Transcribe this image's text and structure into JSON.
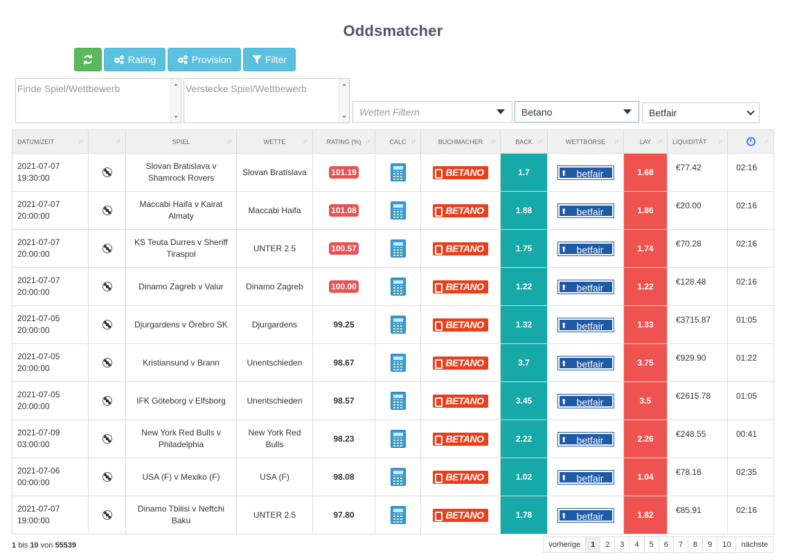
{
  "page": {
    "title": "Oddsmatcher"
  },
  "toolbar": {
    "rating_label": "Rating",
    "provision_label": "Provision",
    "filter_label": "Filter"
  },
  "filters": {
    "find_placeholder": "Finde Spiel/Wettbewerb",
    "hide_placeholder": "Verstecke Spiel/Wettbewerb",
    "bets_placeholder": "Wetten Filtern",
    "bookmaker_value": "Betano",
    "exchange_value": "Betfair"
  },
  "table": {
    "headers": [
      "DATUM/ZEIT",
      "",
      "SPIEL",
      "WETTE",
      "RATING (%)",
      "CALC",
      "BUCHMACHER",
      "BACK",
      "WETTBÖRSE",
      "LAY",
      "LIQUIDITÄT",
      ""
    ],
    "bookmaker_logo": "BETANO",
    "exchange_logo": "betfair",
    "rows": [
      {
        "date": "2021-07-07",
        "time": "19:30:00",
        "game": "Slovan Bratislava v Shamrock Rovers",
        "bet": "Slovan Bratislava",
        "rating": "101.19",
        "highlight": true,
        "back": "1.7",
        "lay": "1.68",
        "liquidity": "€77.42",
        "remaining": "02:16"
      },
      {
        "date": "2021-07-07",
        "time": "20:00:00",
        "game": "Maccabi Haifa v Kairat Almaty",
        "bet": "Maccabi Haifa",
        "rating": "101.08",
        "highlight": true,
        "back": "1.88",
        "lay": "1.86",
        "liquidity": "€20.00",
        "remaining": "02:16"
      },
      {
        "date": "2021-07-07",
        "time": "20:00:00",
        "game": "KS Teuta Durres v Sheriff Tiraspol",
        "bet": "UNTER 2.5",
        "rating": "100.57",
        "highlight": true,
        "back": "1.75",
        "lay": "1.74",
        "liquidity": "€70.28",
        "remaining": "02:16"
      },
      {
        "date": "2021-07-07",
        "time": "20:00:00",
        "game": "Dinamo Zagreb v Valur",
        "bet": "Dinamo Zagreb",
        "rating": "100.00",
        "highlight": true,
        "back": "1.22",
        "lay": "1.22",
        "liquidity": "€128.48",
        "remaining": "02:16"
      },
      {
        "date": "2021-07-05",
        "time": "20:00:00",
        "game": "Djurgardens v Örebro SK",
        "bet": "Djurgardens",
        "rating": "99.25",
        "highlight": false,
        "back": "1.32",
        "lay": "1.33",
        "liquidity": "€3715.87",
        "remaining": "01:05"
      },
      {
        "date": "2021-07-05",
        "time": "20:00:00",
        "game": "Kristiansund v Brann",
        "bet": "Unentschieden",
        "rating": "98.67",
        "highlight": false,
        "back": "3.7",
        "lay": "3.75",
        "liquidity": "€929.90",
        "remaining": "01:22"
      },
      {
        "date": "2021-07-05",
        "time": "20:00:00",
        "game": "IFK Göteborg v Elfsborg",
        "bet": "Unentschieden",
        "rating": "98.57",
        "highlight": false,
        "back": "3.45",
        "lay": "3.5",
        "liquidity": "€2615.78",
        "remaining": "01:05"
      },
      {
        "date": "2021-07-09",
        "time": "03:00:00",
        "game": "New York Red Bulls v Philadelphia",
        "bet": "New York Red Bulls",
        "rating": "98.23",
        "highlight": false,
        "back": "2.22",
        "lay": "2.26",
        "liquidity": "€248.55",
        "remaining": "00:41"
      },
      {
        "date": "2021-07-06",
        "time": "00:00:00",
        "game": "USA (F) v Mexiko (F)",
        "bet": "USA (F)",
        "rating": "98.08",
        "highlight": false,
        "back": "1.02",
        "lay": "1.04",
        "liquidity": "€78.18",
        "remaining": "02:35"
      },
      {
        "date": "2021-07-07",
        "time": "19:00:00",
        "game": "Dinamo Tbilisi v Neftchi Baku",
        "bet": "UNTER 2.5",
        "rating": "97.80",
        "highlight": false,
        "back": "1.78",
        "lay": "1.82",
        "liquidity": "€85.91",
        "remaining": "02:16"
      }
    ]
  },
  "footer": {
    "from": "1",
    "to": "10",
    "total": "55539",
    "word_to": "bis",
    "word_of": "von",
    "prev_label": "vorherige",
    "next_label": "nächste",
    "pages": [
      "1",
      "2",
      "3",
      "4",
      "5",
      "6",
      "7",
      "8",
      "9",
      "10"
    ],
    "active_page": "1"
  },
  "icons": {
    "refresh": "refresh-icon",
    "rating": "gears-icon",
    "provision": "gears-icon",
    "filter": "funnel-icon",
    "sport": "soccer-ball-icon",
    "calc": "calculator-icon",
    "clock": "clock-icon"
  },
  "colors": {
    "refresh_button": "#5cb85c",
    "info_button": "#5bc0de",
    "back_column": "#17a9a7",
    "lay_column": "#ef5350",
    "rating_badge": "#e55353"
  }
}
